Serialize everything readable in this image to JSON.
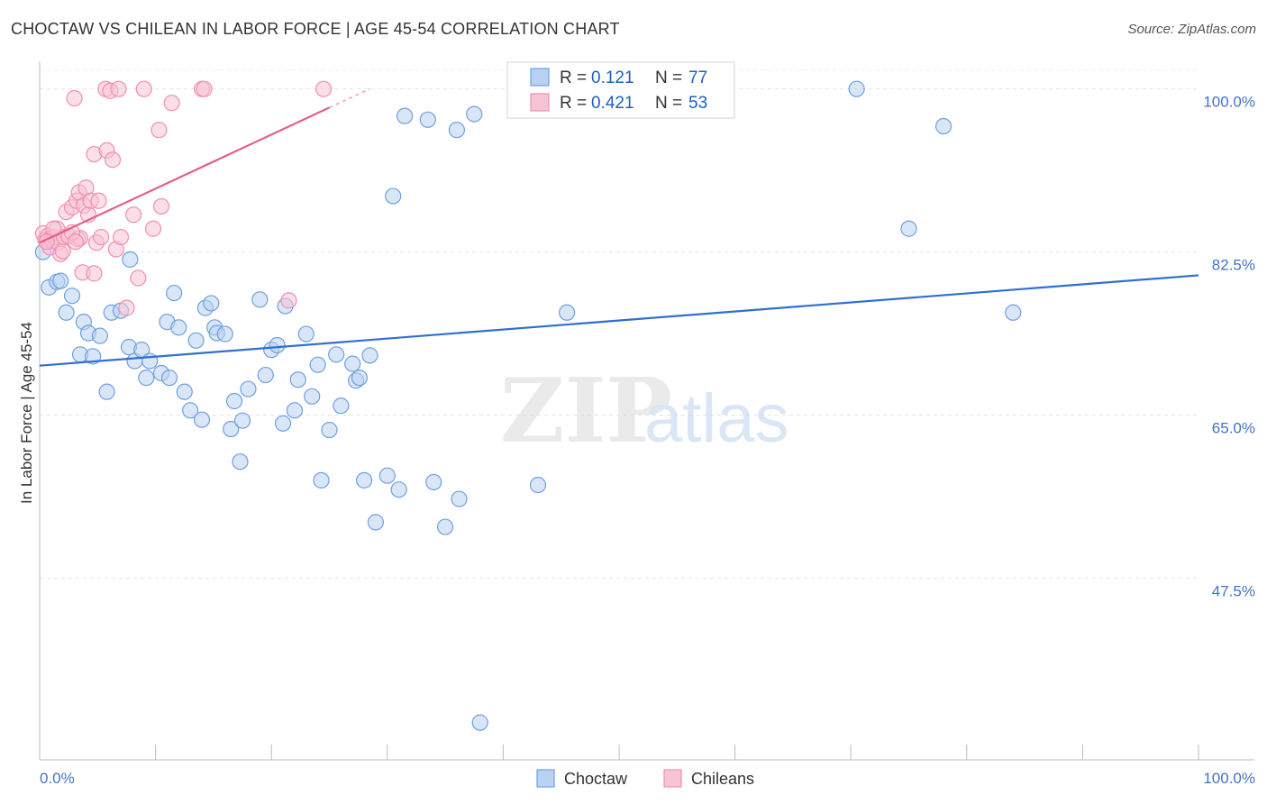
{
  "title": "CHOCTAW VS CHILEAN IN LABOR FORCE | AGE 45-54 CORRELATION CHART",
  "source": "Source: ZipAtlas.com",
  "watermark": {
    "zip": "ZIP",
    "atlas": "atlas"
  },
  "chart_data": {
    "type": "scatter",
    "title": "CHOCTAW VS CHILEAN IN LABOR FORCE | AGE 45-54 CORRELATION CHART",
    "ylabel": "In Labor Force | Age 45-54",
    "xlabel": "",
    "xlim": [
      0,
      100
    ],
    "ylim": [
      28,
      102
    ],
    "x_tick_labels": [
      {
        "value": 0,
        "label": "0.0%"
      },
      {
        "value": 100,
        "label": "100.0%"
      }
    ],
    "y_tick_labels": [
      {
        "value": 100,
        "label": "100.0%"
      },
      {
        "value": 82.5,
        "label": "82.5%"
      },
      {
        "value": 65,
        "label": "65.0%"
      },
      {
        "value": 47.5,
        "label": "47.5%"
      }
    ],
    "legend": {
      "entries": [
        {
          "name": "Choctaw",
          "r_label": "R =",
          "r": "0.121",
          "n_label": "N =",
          "n": "77"
        },
        {
          "name": "Chileans",
          "r_label": "R =",
          "r": "0.421",
          "n_label": "N =",
          "n": "53"
        }
      ]
    },
    "series": [
      {
        "name": "Choctaw",
        "color": "#6fa0e0",
        "fill": "#b9d1f2",
        "trend_color": "#2f6fcf",
        "trend": {
          "x": [
            0,
            100
          ],
          "y": [
            70.3,
            80.0
          ]
        },
        "points": [
          [
            0.3,
            82.5
          ],
          [
            0.8,
            78.7
          ],
          [
            1.5,
            79.3
          ],
          [
            1.8,
            79.4
          ],
          [
            2.3,
            76.0
          ],
          [
            2.8,
            77.8
          ],
          [
            3.5,
            71.5
          ],
          [
            3.8,
            75.0
          ],
          [
            4.2,
            73.8
          ],
          [
            4.6,
            71.3
          ],
          [
            5.2,
            73.5
          ],
          [
            5.8,
            67.5
          ],
          [
            6.2,
            76.0
          ],
          [
            7.0,
            76.2
          ],
          [
            7.8,
            81.7
          ],
          [
            7.7,
            72.3
          ],
          [
            8.2,
            70.8
          ],
          [
            8.8,
            72.0
          ],
          [
            9.2,
            69.0
          ],
          [
            9.5,
            70.8
          ],
          [
            10.5,
            69.5
          ],
          [
            11.0,
            75.0
          ],
          [
            11.2,
            69.0
          ],
          [
            11.6,
            78.1
          ],
          [
            12.0,
            74.4
          ],
          [
            12.5,
            67.5
          ],
          [
            13.0,
            65.5
          ],
          [
            13.5,
            73.0
          ],
          [
            14.0,
            64.5
          ],
          [
            14.3,
            76.5
          ],
          [
            14.8,
            77.0
          ],
          [
            15.1,
            74.4
          ],
          [
            15.3,
            73.8
          ],
          [
            16.0,
            73.7
          ],
          [
            16.5,
            63.5
          ],
          [
            16.8,
            66.5
          ],
          [
            17.3,
            60.0
          ],
          [
            17.5,
            64.4
          ],
          [
            18.0,
            67.8
          ],
          [
            19.0,
            77.4
          ],
          [
            19.5,
            69.3
          ],
          [
            20.0,
            72.0
          ],
          [
            20.5,
            72.5
          ],
          [
            21.0,
            64.1
          ],
          [
            21.2,
            76.7
          ],
          [
            22.0,
            65.5
          ],
          [
            22.3,
            68.8
          ],
          [
            23.0,
            73.7
          ],
          [
            23.5,
            67.0
          ],
          [
            24.0,
            70.4
          ],
          [
            24.3,
            58.0
          ],
          [
            25.0,
            63.4
          ],
          [
            25.6,
            71.5
          ],
          [
            26.0,
            66.0
          ],
          [
            27.0,
            70.5
          ],
          [
            27.3,
            68.7
          ],
          [
            27.6,
            69.0
          ],
          [
            28.0,
            58.0
          ],
          [
            28.5,
            71.4
          ],
          [
            29.0,
            53.5
          ],
          [
            30.0,
            58.5
          ],
          [
            30.5,
            88.5
          ],
          [
            31.0,
            57.0
          ],
          [
            31.5,
            97.1
          ],
          [
            33.5,
            96.7
          ],
          [
            34.0,
            57.8
          ],
          [
            35.0,
            53.0
          ],
          [
            36.0,
            95.6
          ],
          [
            36.2,
            56.0
          ],
          [
            37.5,
            97.3
          ],
          [
            38.0,
            32.0
          ],
          [
            43.0,
            57.5
          ],
          [
            45.5,
            76.0
          ],
          [
            70.5,
            100.0
          ],
          [
            75.0,
            85.0
          ],
          [
            84.0,
            76.0
          ],
          [
            78.0,
            96.0
          ]
        ]
      },
      {
        "name": "Chileans",
        "color": "#f08fb0",
        "fill": "#f8c3d5",
        "trend_color": "#e0608c",
        "trend": {
          "x": [
            0,
            25
          ],
          "y": [
            83.5,
            98.0
          ],
          "dashed_to": {
            "x": 28.5,
            "y": 100.0
          }
        },
        "points": [
          [
            0.3,
            84.5
          ],
          [
            0.5,
            83.8
          ],
          [
            0.7,
            84.2
          ],
          [
            0.9,
            83.0
          ],
          [
            1.0,
            84.0
          ],
          [
            1.1,
            83.7
          ],
          [
            1.3,
            84.1
          ],
          [
            1.5,
            85.0
          ],
          [
            1.6,
            83.5
          ],
          [
            1.8,
            82.3
          ],
          [
            2.0,
            82.6
          ],
          [
            2.1,
            84.1
          ],
          [
            2.3,
            86.8
          ],
          [
            2.5,
            84.2
          ],
          [
            2.8,
            87.3
          ],
          [
            3.0,
            99.0
          ],
          [
            3.2,
            88.0
          ],
          [
            3.3,
            83.9
          ],
          [
            3.4,
            88.9
          ],
          [
            3.5,
            84.0
          ],
          [
            3.7,
            80.3
          ],
          [
            3.8,
            87.5
          ],
          [
            4.0,
            89.4
          ],
          [
            4.2,
            86.5
          ],
          [
            4.4,
            88.0
          ],
          [
            4.7,
            80.2
          ],
          [
            4.7,
            93.0
          ],
          [
            4.9,
            83.5
          ],
          [
            5.1,
            88.0
          ],
          [
            5.3,
            84.1
          ],
          [
            5.7,
            100.0
          ],
          [
            5.8,
            93.4
          ],
          [
            6.1,
            99.8
          ],
          [
            6.3,
            92.4
          ],
          [
            6.6,
            82.8
          ],
          [
            6.8,
            100.0
          ],
          [
            7.0,
            84.1
          ],
          [
            7.5,
            76.5
          ],
          [
            8.1,
            86.5
          ],
          [
            8.5,
            79.7
          ],
          [
            9.0,
            100.0
          ],
          [
            9.8,
            85.0
          ],
          [
            10.3,
            95.6
          ],
          [
            10.5,
            87.4
          ],
          [
            11.4,
            98.5
          ],
          [
            14.0,
            100.0
          ],
          [
            14.2,
            100.0
          ],
          [
            21.5,
            77.3
          ],
          [
            24.5,
            100.0
          ],
          [
            2.8,
            84.6
          ],
          [
            1.2,
            85.0
          ],
          [
            0.6,
            83.6
          ],
          [
            3.1,
            83.6
          ]
        ]
      }
    ]
  }
}
